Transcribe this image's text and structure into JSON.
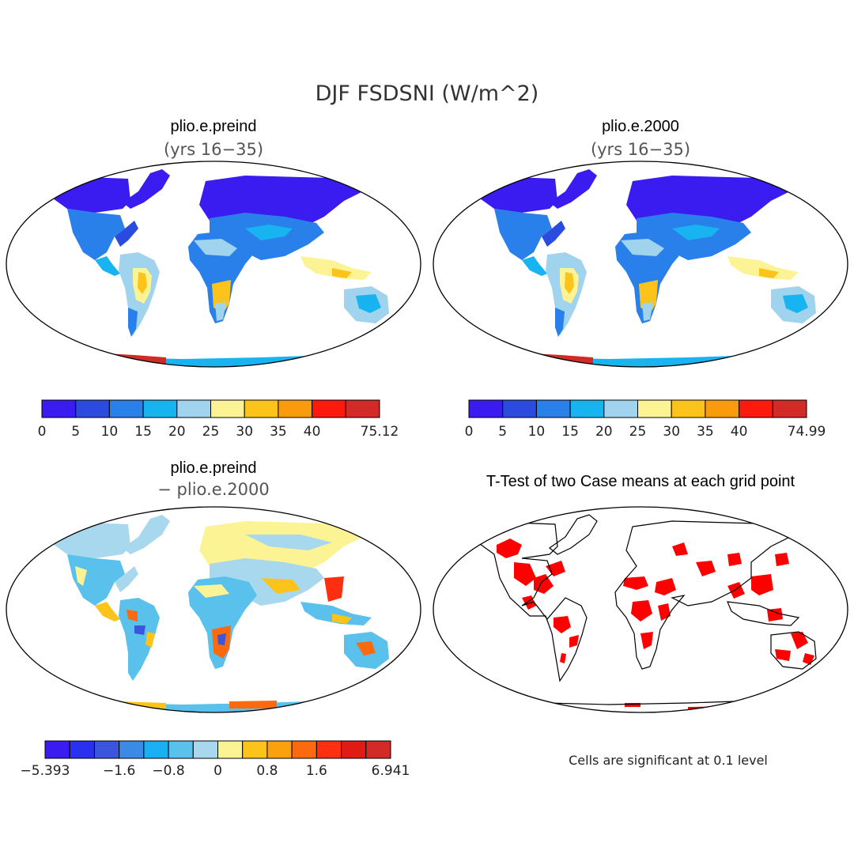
{
  "main_title": "DJF FSDSNI (W/m^2)",
  "panels": [
    {
      "title": "plio.e.preind",
      "subtitle": "(yrs 16−35)"
    },
    {
      "title": "plio.e.2000",
      "subtitle": "(yrs 16−35)"
    },
    {
      "title": "plio.e.preind",
      "subtitle": "− plio.e.2000"
    },
    {
      "title": "T-Test of two Case means at each grid point",
      "subtitle": ""
    }
  ],
  "colorbars": [
    {
      "colors": [
        "#3a1cf0",
        "#2a4ae0",
        "#2a80ea",
        "#18b4f2",
        "#a0d4ee",
        "#fcf494",
        "#fcc41a",
        "#fc9a0e",
        "#fc1a0e",
        "#d22a26"
      ],
      "tick_labels": [
        "0",
        "5",
        "10",
        "15",
        "20",
        "25",
        "30",
        "35",
        "40",
        "75.12"
      ],
      "tick_index": [
        0,
        1,
        2,
        3,
        4,
        5,
        6,
        7,
        8,
        10
      ]
    },
    {
      "colors": [
        "#3a1cf0",
        "#2a4ae0",
        "#2a80ea",
        "#18b4f2",
        "#a0d4ee",
        "#fcf494",
        "#fcc41a",
        "#fc9a0e",
        "#fc1a0e",
        "#d22a26"
      ],
      "tick_labels": [
        "0",
        "5",
        "10",
        "15",
        "20",
        "25",
        "30",
        "35",
        "40",
        "74.99"
      ],
      "tick_index": [
        0,
        1,
        2,
        3,
        4,
        5,
        6,
        7,
        8,
        10
      ]
    },
    {
      "colors": [
        "#3a1cf0",
        "#2a30f0",
        "#3a56dc",
        "#3a8ae6",
        "#18b0f2",
        "#5ac0ec",
        "#a8d8ee",
        "#fcf494",
        "#fcc41a",
        "#fca010",
        "#fc6a10",
        "#fc3010",
        "#e01a14",
        "#d22a26"
      ],
      "tick_labels": [
        "−5.393",
        "−1.6",
        "−0.8",
        "0",
        "0.8",
        "1.6",
        "6.941"
      ],
      "tick_index": [
        0,
        3,
        5,
        7,
        9,
        11,
        14
      ]
    }
  ],
  "significance_note": "Cells are significant at 0.1 level",
  "colors": {
    "significant": "#ff0000",
    "land_outline": "#000000"
  }
}
